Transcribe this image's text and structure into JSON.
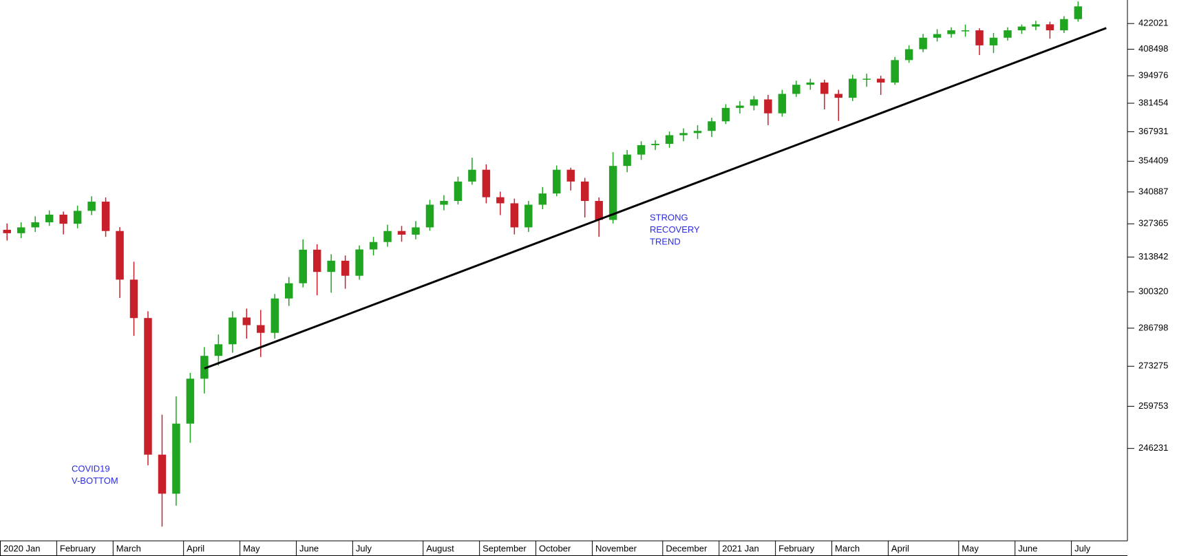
{
  "chart_data": {
    "type": "candlestick",
    "categories": [
      "2020 Jan",
      null,
      null,
      null,
      "February",
      null,
      null,
      null,
      "March",
      null,
      null,
      null,
      null,
      "April",
      null,
      null,
      null,
      "May",
      null,
      null,
      null,
      "June",
      null,
      null,
      null,
      "July",
      null,
      null,
      null,
      null,
      "August",
      null,
      null,
      null,
      "September",
      null,
      null,
      null,
      "October",
      null,
      null,
      null,
      "November",
      null,
      null,
      null,
      null,
      "December",
      null,
      null,
      null,
      "2021 Jan",
      null,
      null,
      null,
      "February",
      null,
      null,
      null,
      "March",
      null,
      null,
      null,
      "April",
      null,
      null,
      null,
      null,
      "May",
      null,
      null,
      null,
      "June",
      null,
      null,
      null,
      "July",
      null,
      null,
      null
    ],
    "open": [
      324900,
      323500,
      325900,
      328000,
      331200,
      327400,
      332800,
      336700,
      324400,
      305000,
      290500,
      244300,
      232500,
      254100,
      269000,
      276900,
      281000,
      290700,
      287900,
      285100,
      297800,
      303600,
      316800,
      308000,
      312400,
      306500,
      316900,
      319900,
      324400,
      322900,
      325900,
      335400,
      337000,
      345400,
      350600,
      338600,
      336000,
      325900,
      335400,
      340200,
      350600,
      345400,
      337000,
      329000,
      352300,
      357400,
      361700,
      362300,
      366300,
      367300,
      368300,
      372800,
      379200,
      380300,
      383300,
      376600,
      386000,
      390500,
      391600,
      386000,
      384100,
      393500,
      393500,
      391600,
      402900,
      408500,
      414500,
      416400,
      418400,
      418400,
      410500,
      414500,
      418400,
      420400,
      421600,
      418400,
      424400,
      null,
      null,
      null
    ],
    "high": [
      327500,
      328000,
      330500,
      333000,
      332500,
      335000,
      339000,
      338500,
      326000,
      312000,
      293000,
      257000,
      263000,
      271000,
      280000,
      284500,
      293000,
      294000,
      293500,
      299500,
      306000,
      321000,
      319000,
      315000,
      314500,
      318500,
      322000,
      327000,
      326500,
      328500,
      337500,
      339500,
      347500,
      356000,
      353000,
      341000,
      338000,
      337000,
      343000,
      352500,
      351500,
      347000,
      338500,
      358500,
      359500,
      363500,
      364000,
      368000,
      369500,
      371000,
      374500,
      381000,
      382500,
      385000,
      385500,
      388000,
      392500,
      393500,
      393000,
      388000,
      395500,
      396000,
      395000,
      404500,
      410500,
      416500,
      419000,
      420000,
      421500,
      419500,
      417000,
      420000,
      421500,
      423500,
      423000,
      426000,
      434000,
      null,
      null,
      null
    ],
    "low": [
      320500,
      321500,
      324000,
      326500,
      323000,
      325500,
      331000,
      322000,
      298000,
      284000,
      241000,
      223000,
      229000,
      248000,
      264000,
      273500,
      278000,
      283000,
      276500,
      283000,
      295000,
      302000,
      299000,
      300000,
      301500,
      305000,
      314500,
      318000,
      320000,
      321000,
      324500,
      333000,
      335500,
      344000,
      336000,
      331000,
      323000,
      324000,
      333500,
      339000,
      341500,
      330000,
      322000,
      327500,
      349500,
      355000,
      359500,
      360500,
      363500,
      364500,
      365500,
      371500,
      376500,
      378000,
      371000,
      375000,
      384500,
      388000,
      378500,
      373000,
      382500,
      389500,
      385500,
      390500,
      401500,
      407000,
      412500,
      414500,
      415000,
      405500,
      406500,
      413000,
      416500,
      418500,
      414000,
      417000,
      423000,
      null,
      null,
      null
    ],
    "close": [
      323500,
      325900,
      328000,
      331200,
      327400,
      332800,
      336700,
      324400,
      305000,
      290500,
      244300,
      232500,
      254100,
      269000,
      276900,
      281000,
      290700,
      287900,
      285100,
      297800,
      303600,
      316800,
      308000,
      312400,
      306500,
      316900,
      319900,
      324400,
      322900,
      325900,
      335400,
      337000,
      345400,
      350600,
      338600,
      336000,
      325900,
      335400,
      340200,
      350600,
      345400,
      337000,
      329000,
      352300,
      357400,
      361700,
      362300,
      366300,
      367300,
      368300,
      372800,
      379200,
      380300,
      383300,
      376600,
      386000,
      390500,
      391600,
      386000,
      384100,
      393500,
      393500,
      391600,
      402900,
      408500,
      414500,
      416400,
      418400,
      418400,
      410500,
      414500,
      418400,
      420400,
      421600,
      418400,
      424400,
      431300,
      null,
      null,
      null
    ],
    "up_color": "#1fa51f",
    "down_color": "#c8202a",
    "ylim": [
      219000,
      434800
    ],
    "yticks": [
      246231,
      259753,
      273275,
      286798,
      300320,
      313842,
      327365,
      340887,
      354409,
      367931,
      381454,
      394976,
      408498,
      422021
    ],
    "log_scale": true,
    "trendline": {
      "from": {
        "category": 14,
        "value": 272500
      },
      "to": {
        "category": 78,
        "value": 419600
      },
      "color": "#000000"
    },
    "annotations": [
      {
        "lines": [
          "COVID19",
          "V-BOTTOM"
        ],
        "color": "#2a2ae8"
      },
      {
        "lines": [
          "STRONG",
          "RECOVERY",
          "TREND"
        ],
        "color": "#2a2ae8"
      }
    ]
  }
}
